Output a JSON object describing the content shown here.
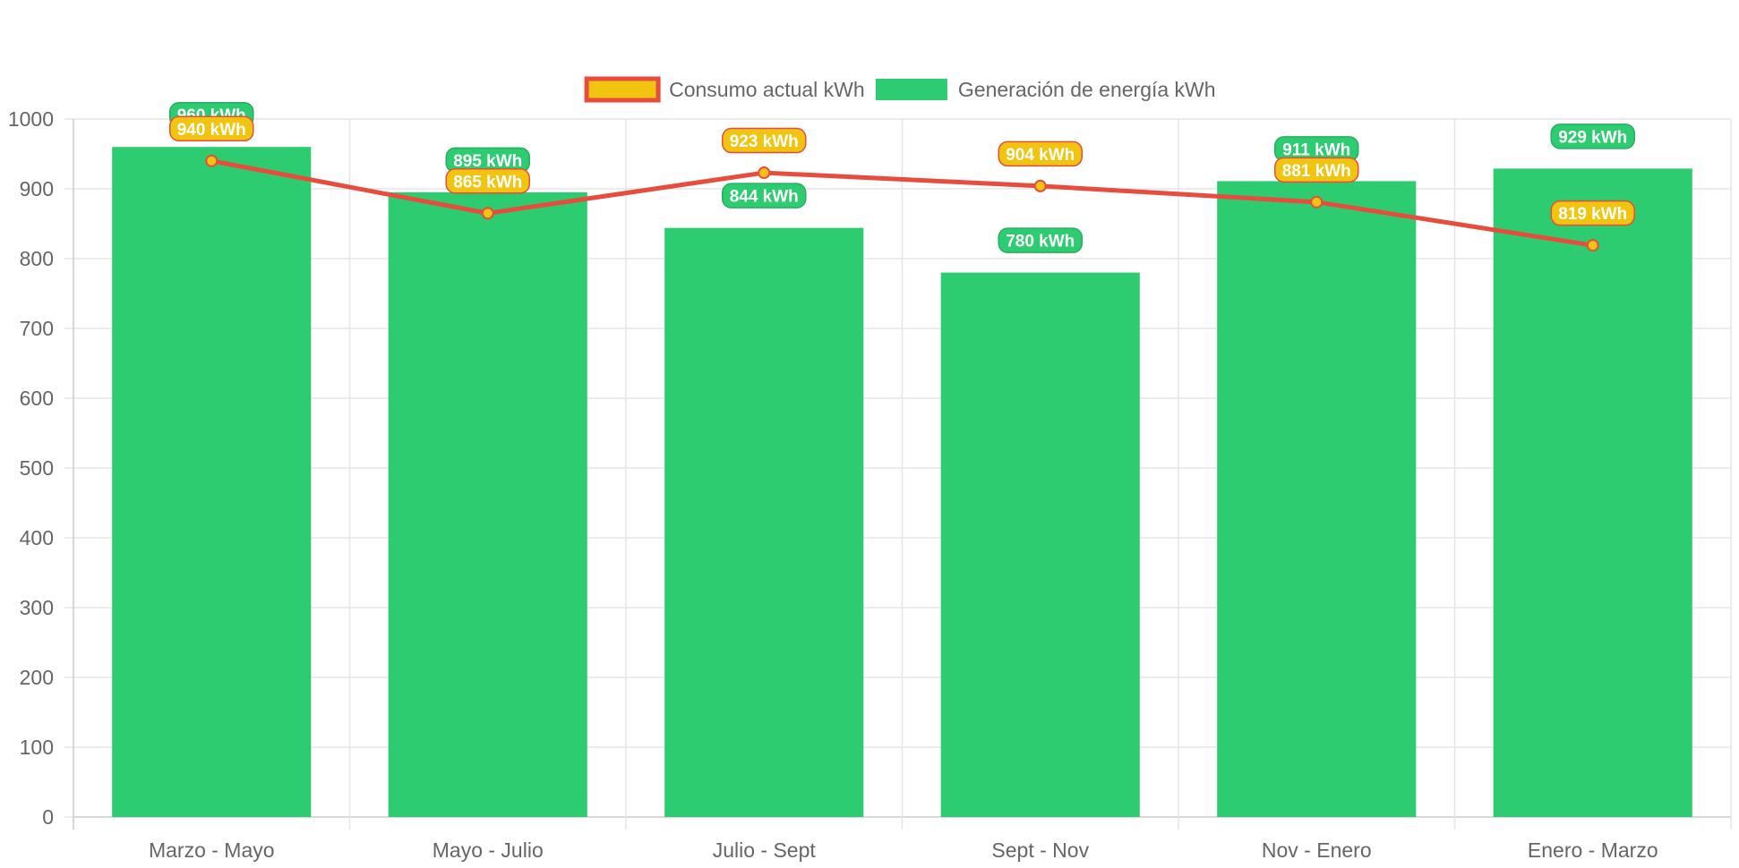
{
  "chart_data": {
    "type": "bar",
    "categories": [
      "Marzo - Mayo",
      "Mayo - Julio",
      "Julio - Sept",
      "Sept - Nov",
      "Nov - Enero",
      "Enero - Marzo"
    ],
    "series": [
      {
        "name": "Consumo actual kWh",
        "type": "line",
        "values": [
          940,
          865,
          923,
          904,
          881,
          819
        ],
        "labels": [
          "940 kWh",
          "865 kWh",
          "923 kWh",
          "904 kWh",
          "881 kWh",
          "819 kWh"
        ],
        "color": "#e74c3c",
        "fill_color": "#f1c40f"
      },
      {
        "name": "Generación de energía kWh",
        "type": "bar",
        "values": [
          960,
          895,
          844,
          780,
          911,
          929
        ],
        "labels": [
          "960 kWh",
          "895 kWh",
          "844 kWh",
          "780 kWh",
          "911 kWh",
          "929 kWh"
        ],
        "color": "#2ecc71",
        "label_border": "#27ae60"
      }
    ],
    "ylim": [
      0,
      1000
    ],
    "yticks": [
      "0",
      "100",
      "200",
      "300",
      "400",
      "500",
      "600",
      "700",
      "800",
      "900",
      "1000"
    ],
    "grid": true,
    "legend": "top-center"
  }
}
